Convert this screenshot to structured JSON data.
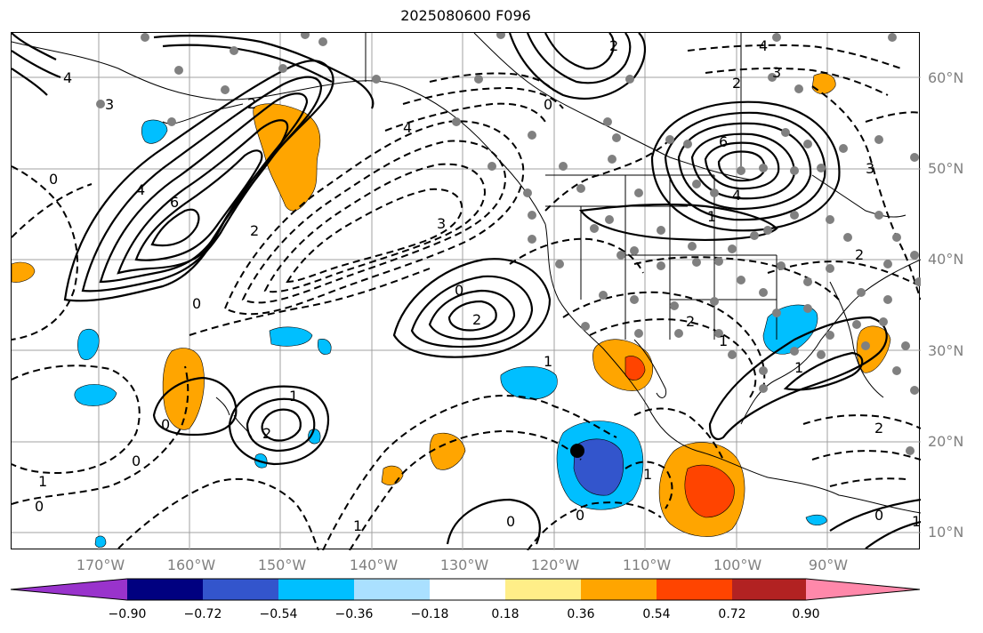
{
  "title": "2025080600 F096",
  "lat_labels": [
    "60°N",
    "50°N",
    "40°N",
    "30°N",
    "20°N",
    "10°N"
  ],
  "lon_labels": [
    "170°W",
    "160°W",
    "150°W",
    "140°W",
    "130°W",
    "120°W",
    "110°W",
    "100°W",
    "90°W"
  ],
  "colorbar": {
    "colors": [
      "#9933cc",
      "#000080",
      "#3355cc",
      "#00bfff",
      "#aae0ff",
      "#ffffff",
      "#ffee88",
      "#ffa500",
      "#ff4400",
      "#b22222",
      "#ff88aa"
    ],
    "tick_labels": [
      "−0.90",
      "−0.72",
      "−0.54",
      "−0.36",
      "−0.18",
      "0.18",
      "0.36",
      "0.54",
      "0.72",
      "0.90"
    ]
  },
  "contour_labels": {
    "c1": "4",
    "c2": "3",
    "c3": "6",
    "c4": "4",
    "c5": "2",
    "c6": "0",
    "c7": "2",
    "c8": "4",
    "c9": "0",
    "c10": "3",
    "c11": "0",
    "c12": "2",
    "c13": "1",
    "c14": "0",
    "c15": "2",
    "c16": "1",
    "c17": "0",
    "c18": "0",
    "c19": "4",
    "c20": "3",
    "c21": "2",
    "c22": "6",
    "c23": "4",
    "c24": "2",
    "c25": "3",
    "c26": "1",
    "c27": "0",
    "c28": "1",
    "c29": "0",
    "c30": "1",
    "c31": "0",
    "c32": "2",
    "c33": "2",
    "c34": "1",
    "c35": "2",
    "c36": "1",
    "c37": "0",
    "c38": "1",
    "c39": "1"
  }
}
